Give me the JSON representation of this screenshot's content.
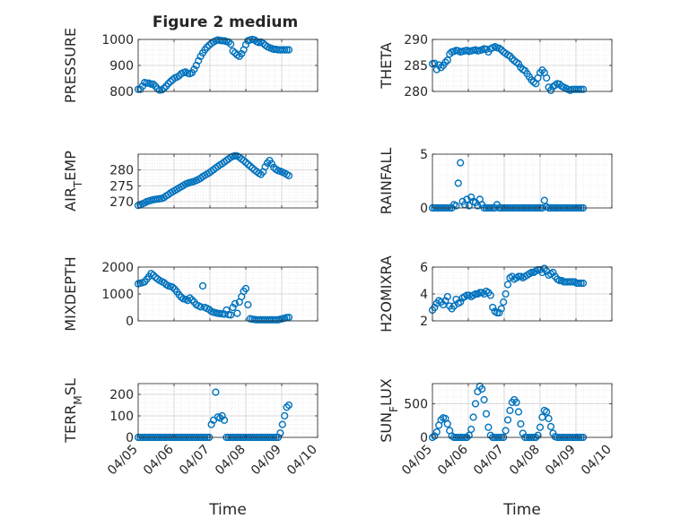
{
  "figure": {
    "title": "Figure 2 medium",
    "marker_color": "#0072BD",
    "grid_color": "#d9d9d9",
    "axis_color": "#262626",
    "x_tick_labels": [
      "04/05",
      "04/06",
      "04/07",
      "04/08",
      "04/09",
      "04/10"
    ],
    "x_label": "Time"
  },
  "chart_data": [
    {
      "type": "scatter",
      "ylabel": "PRESSURE",
      "ylim": [
        800,
        1000
      ],
      "yticks": [
        800,
        900,
        1000
      ],
      "x": [
        0.0,
        0.06,
        0.12,
        0.18,
        0.24,
        0.3,
        0.36,
        0.42,
        0.48,
        0.54,
        0.6,
        0.66,
        0.72,
        0.78,
        0.84,
        0.9,
        0.96,
        1.02,
        1.08,
        1.14,
        1.2,
        1.26,
        1.32,
        1.38,
        1.44,
        1.5,
        1.56,
        1.62,
        1.68,
        1.74,
        1.8,
        1.86,
        1.92,
        1.98,
        2.04,
        2.1,
        2.16,
        2.22,
        2.28,
        2.34,
        2.4,
        2.46,
        2.52,
        2.58,
        2.64,
        2.7,
        2.76,
        2.82,
        2.88,
        2.94,
        3.0,
        3.06,
        3.12,
        3.18,
        3.24,
        3.3,
        3.36,
        3.42,
        3.48,
        3.54,
        3.6,
        3.66,
        3.72,
        3.78,
        3.84,
        3.9,
        3.96,
        4.02,
        4.08,
        4.14,
        4.2
      ],
      "y": [
        808,
        808,
        820,
        834,
        832,
        832,
        828,
        828,
        820,
        810,
        805,
        806,
        812,
        820,
        830,
        838,
        845,
        852,
        855,
        860,
        868,
        872,
        875,
        870,
        868,
        872,
        885,
        900,
        918,
        935,
        948,
        960,
        970,
        978,
        985,
        990,
        995,
        998,
        996,
        995,
        995,
        992,
        990,
        982,
        955,
        948,
        940,
        935,
        945,
        960,
        980,
        995,
        998,
        1000,
        998,
        992,
        988,
        990,
        985,
        978,
        972,
        968,
        965,
        962,
        962,
        960,
        960,
        960,
        960,
        960,
        960
      ]
    },
    {
      "type": "scatter",
      "ylabel": "THETA",
      "ylim": [
        280,
        290
      ],
      "yticks": [
        280,
        285,
        290
      ],
      "x": [
        0.0,
        0.06,
        0.12,
        0.18,
        0.24,
        0.3,
        0.36,
        0.42,
        0.48,
        0.54,
        0.6,
        0.66,
        0.72,
        0.78,
        0.84,
        0.9,
        0.96,
        1.02,
        1.08,
        1.14,
        1.2,
        1.26,
        1.32,
        1.38,
        1.44,
        1.5,
        1.56,
        1.62,
        1.68,
        1.74,
        1.8,
        1.86,
        1.92,
        1.98,
        2.04,
        2.1,
        2.16,
        2.22,
        2.28,
        2.34,
        2.4,
        2.46,
        2.52,
        2.58,
        2.64,
        2.7,
        2.76,
        2.82,
        2.88,
        2.94,
        3.0,
        3.06,
        3.12,
        3.18,
        3.24,
        3.3,
        3.36,
        3.42,
        3.48,
        3.54,
        3.6,
        3.66,
        3.72,
        3.78,
        3.84,
        3.9,
        3.96,
        4.02,
        4.08,
        4.14,
        4.2
      ],
      "y": [
        285.3,
        285.4,
        284.2,
        285.1,
        284.6,
        285.0,
        285.6,
        286.0,
        287.2,
        287.6,
        287.7,
        287.9,
        287.8,
        287.6,
        287.7,
        287.8,
        287.9,
        287.7,
        287.8,
        287.9,
        288.0,
        287.8,
        287.9,
        288.0,
        288.2,
        288.1,
        287.6,
        288.2,
        288.4,
        288.6,
        288.4,
        288.3,
        288.0,
        287.6,
        287.3,
        287.0,
        286.8,
        286.3,
        285.9,
        285.6,
        285.3,
        284.6,
        284.2,
        284.0,
        283.4,
        282.8,
        282.2,
        281.8,
        281.5,
        282.6,
        283.6,
        284.1,
        283.6,
        282.6,
        280.8,
        280.2,
        280.9,
        281.2,
        281.5,
        281.4,
        281.0,
        280.8,
        280.6,
        280.4,
        280.2,
        280.4,
        280.4,
        280.4,
        280.4,
        280.4,
        280.4
      ]
    },
    {
      "type": "scatter",
      "ylabel": "AIR_TEMP",
      "ylim": [
        268,
        285
      ],
      "yticks": [
        270,
        275,
        280
      ],
      "x": [
        0.0,
        0.06,
        0.12,
        0.18,
        0.24,
        0.3,
        0.36,
        0.42,
        0.48,
        0.54,
        0.6,
        0.66,
        0.72,
        0.78,
        0.84,
        0.9,
        0.96,
        1.02,
        1.08,
        1.14,
        1.2,
        1.26,
        1.32,
        1.38,
        1.44,
        1.5,
        1.56,
        1.62,
        1.68,
        1.74,
        1.8,
        1.86,
        1.92,
        1.98,
        2.04,
        2.1,
        2.16,
        2.22,
        2.28,
        2.34,
        2.4,
        2.46,
        2.52,
        2.58,
        2.64,
        2.7,
        2.76,
        2.82,
        2.88,
        2.94,
        3.0,
        3.06,
        3.12,
        3.18,
        3.24,
        3.3,
        3.36,
        3.42,
        3.48,
        3.54,
        3.6,
        3.66,
        3.72,
        3.78,
        3.84,
        3.9,
        3.96,
        4.02,
        4.08,
        4.14,
        4.2
      ],
      "y": [
        268.8,
        269.0,
        269.3,
        269.6,
        270.0,
        270.2,
        270.4,
        270.6,
        270.7,
        270.8,
        270.9,
        271.0,
        271.3,
        271.8,
        272.2,
        272.7,
        273.1,
        273.5,
        273.9,
        274.3,
        274.7,
        275.1,
        275.5,
        275.8,
        276.0,
        276.2,
        276.4,
        276.7,
        277.0,
        277.4,
        277.9,
        278.3,
        278.7,
        279.1,
        279.6,
        280.1,
        280.6,
        281.1,
        281.6,
        282.0,
        282.5,
        283.0,
        283.5,
        284.0,
        284.3,
        284.5,
        284.4,
        284.0,
        283.5,
        283.0,
        282.4,
        281.8,
        281.2,
        280.6,
        280.0,
        279.5,
        279.0,
        278.6,
        279.4,
        281.0,
        282.2,
        283.0,
        282.0,
        280.8,
        280.2,
        279.8,
        279.6,
        279.3,
        279.0,
        278.6,
        278.2
      ]
    },
    {
      "type": "scatter",
      "ylabel": "RAINFALL",
      "ylim": [
        0,
        5
      ],
      "yticks": [
        0,
        5
      ],
      "x": [
        0.0,
        0.06,
        0.12,
        0.18,
        0.24,
        0.3,
        0.36,
        0.42,
        0.48,
        0.54,
        0.6,
        0.66,
        0.72,
        0.78,
        0.84,
        0.9,
        0.96,
        1.02,
        1.08,
        1.14,
        1.2,
        1.26,
        1.32,
        1.38,
        1.44,
        1.5,
        1.56,
        1.62,
        1.68,
        1.74,
        1.8,
        1.86,
        1.92,
        1.98,
        2.04,
        2.1,
        2.16,
        2.22,
        2.28,
        2.34,
        2.4,
        2.46,
        2.52,
        2.58,
        2.64,
        2.7,
        2.76,
        2.82,
        2.88,
        2.94,
        3.0,
        3.06,
        3.12,
        3.18,
        3.24,
        3.3,
        3.36,
        3.42,
        3.48,
        3.54,
        3.6,
        3.66,
        3.72,
        3.78,
        3.84,
        3.9,
        3.96,
        4.02,
        4.08,
        4.14,
        4.2
      ],
      "y": [
        0,
        0,
        0,
        0,
        0,
        0,
        0,
        0,
        0,
        0,
        0.3,
        0.2,
        2.3,
        4.2,
        0.6,
        0.3,
        0.8,
        0.2,
        1.0,
        0.6,
        0.5,
        0.2,
        0.8,
        0.3,
        0,
        0,
        0,
        0,
        0,
        0,
        0.3,
        0,
        0,
        0,
        0,
        0,
        0,
        0,
        0,
        0,
        0,
        0,
        0,
        0,
        0,
        0,
        0,
        0,
        0,
        0,
        0,
        0,
        0.7,
        0.1,
        0,
        0,
        0,
        0,
        0,
        0,
        0,
        0,
        0,
        0,
        0,
        0,
        0,
        0,
        0,
        0,
        0
      ]
    },
    {
      "type": "scatter",
      "ylabel": "MIXDEPTH",
      "ylim": [
        0,
        2000
      ],
      "yticks": [
        0,
        1000,
        2000
      ],
      "x": [
        0.0,
        0.06,
        0.12,
        0.18,
        0.24,
        0.3,
        0.36,
        0.42,
        0.48,
        0.54,
        0.6,
        0.66,
        0.72,
        0.78,
        0.84,
        0.9,
        0.96,
        1.02,
        1.08,
        1.14,
        1.2,
        1.26,
        1.32,
        1.38,
        1.44,
        1.5,
        1.56,
        1.62,
        1.68,
        1.74,
        1.8,
        1.86,
        1.92,
        1.98,
        2.04,
        2.1,
        2.16,
        2.22,
        2.28,
        2.34,
        2.4,
        2.46,
        2.52,
        2.58,
        2.64,
        2.7,
        2.76,
        2.82,
        2.88,
        2.94,
        3.0,
        3.06,
        3.12,
        3.18,
        3.24,
        3.3,
        3.36,
        3.42,
        3.48,
        3.54,
        3.6,
        3.66,
        3.72,
        3.78,
        3.84,
        3.9,
        3.96,
        4.02,
        4.08,
        4.14,
        4.2
      ],
      "y": [
        1380,
        1400,
        1420,
        1450,
        1550,
        1650,
        1760,
        1700,
        1620,
        1560,
        1500,
        1460,
        1420,
        1350,
        1300,
        1280,
        1250,
        1180,
        1080,
        970,
        880,
        820,
        800,
        760,
        850,
        780,
        700,
        600,
        560,
        520,
        1300,
        500,
        460,
        420,
        350,
        320,
        300,
        280,
        270,
        260,
        250,
        400,
        230,
        220,
        500,
        640,
        280,
        700,
        900,
        1100,
        1200,
        600,
        80,
        60,
        50,
        40,
        40,
        40,
        40,
        40,
        40,
        40,
        40,
        40,
        40,
        40,
        60,
        80,
        100,
        120,
        130
      ]
    },
    {
      "type": "scatter",
      "ylabel": "H2OMIXRA",
      "ylim": [
        2,
        6
      ],
      "yticks": [
        2,
        4,
        6
      ],
      "x": [
        0.0,
        0.06,
        0.12,
        0.18,
        0.24,
        0.3,
        0.36,
        0.42,
        0.48,
        0.54,
        0.6,
        0.66,
        0.72,
        0.78,
        0.84,
        0.9,
        0.96,
        1.02,
        1.08,
        1.14,
        1.2,
        1.26,
        1.32,
        1.38,
        1.44,
        1.5,
        1.56,
        1.62,
        1.68,
        1.74,
        1.8,
        1.86,
        1.92,
        1.98,
        2.04,
        2.1,
        2.16,
        2.22,
        2.28,
        2.34,
        2.4,
        2.46,
        2.52,
        2.58,
        2.64,
        2.7,
        2.76,
        2.82,
        2.88,
        2.94,
        3.0,
        3.06,
        3.12,
        3.18,
        3.24,
        3.3,
        3.36,
        3.42,
        3.48,
        3.54,
        3.6,
        3.66,
        3.72,
        3.78,
        3.84,
        3.9,
        3.96,
        4.02,
        4.08,
        4.14,
        4.2
      ],
      "y": [
        2.8,
        3.0,
        3.3,
        3.5,
        3.4,
        3.2,
        3.5,
        3.8,
        3.1,
        2.9,
        3.1,
        3.6,
        3.3,
        3.4,
        3.7,
        3.8,
        3.9,
        3.9,
        3.8,
        3.9,
        4.0,
        4.0,
        4.1,
        4.1,
        4.0,
        4.2,
        4.1,
        3.9,
        3.0,
        2.7,
        2.6,
        2.6,
        2.9,
        3.4,
        4.0,
        4.7,
        5.2,
        5.3,
        5.1,
        5.2,
        5.3,
        5.3,
        5.2,
        5.3,
        5.4,
        5.5,
        5.6,
        5.6,
        5.7,
        5.8,
        5.8,
        5.6,
        5.9,
        5.7,
        5.4,
        5.5,
        5.6,
        5.3,
        5.1,
        5.0,
        5.0,
        4.9,
        4.9,
        4.9,
        4.9,
        4.9,
        4.9,
        4.8,
        4.8,
        4.8,
        4.8
      ]
    },
    {
      "type": "scatter",
      "ylabel": "TERR_MSL",
      "ylim": [
        0,
        250
      ],
      "yticks": [
        0,
        100,
        200
      ],
      "x": [
        0.0,
        0.06,
        0.12,
        0.18,
        0.24,
        0.3,
        0.36,
        0.42,
        0.48,
        0.54,
        0.6,
        0.66,
        0.72,
        0.78,
        0.84,
        0.9,
        0.96,
        1.02,
        1.08,
        1.14,
        1.2,
        1.26,
        1.32,
        1.38,
        1.44,
        1.5,
        1.56,
        1.62,
        1.68,
        1.74,
        1.8,
        1.86,
        1.92,
        1.98,
        2.04,
        2.1,
        2.16,
        2.22,
        2.28,
        2.34,
        2.4,
        2.46,
        2.52,
        2.58,
        2.64,
        2.7,
        2.76,
        2.82,
        2.88,
        2.94,
        3.0,
        3.06,
        3.12,
        3.18,
        3.24,
        3.3,
        3.36,
        3.42,
        3.48,
        3.54,
        3.6,
        3.66,
        3.72,
        3.78,
        3.84,
        3.9,
        3.96,
        4.02,
        4.08,
        4.14,
        4.2
      ],
      "y": [
        0,
        0,
        0,
        0,
        0,
        0,
        0,
        0,
        0,
        0,
        0,
        0,
        0,
        0,
        0,
        0,
        0,
        0,
        0,
        0,
        0,
        0,
        0,
        0,
        0,
        0,
        0,
        0,
        0,
        0,
        0,
        0,
        0,
        0,
        60,
        80,
        210,
        95,
        90,
        100,
        80,
        0,
        0,
        0,
        0,
        0,
        0,
        0,
        0,
        0,
        0,
        0,
        0,
        0,
        0,
        0,
        0,
        0,
        0,
        0,
        0,
        0,
        0,
        0,
        0,
        0,
        20,
        60,
        100,
        140,
        150
      ]
    },
    {
      "type": "scatter",
      "ylabel": "SUN_FLUX",
      "ylim": [
        0,
        800
      ],
      "yticks": [
        0,
        500
      ],
      "x": [
        0.0,
        0.06,
        0.12,
        0.18,
        0.24,
        0.3,
        0.36,
        0.42,
        0.48,
        0.54,
        0.6,
        0.66,
        0.72,
        0.78,
        0.84,
        0.9,
        0.96,
        1.02,
        1.08,
        1.14,
        1.2,
        1.26,
        1.32,
        1.38,
        1.44,
        1.5,
        1.56,
        1.62,
        1.68,
        1.74,
        1.8,
        1.86,
        1.92,
        1.98,
        2.04,
        2.1,
        2.16,
        2.22,
        2.28,
        2.34,
        2.4,
        2.46,
        2.52,
        2.58,
        2.64,
        2.7,
        2.76,
        2.82,
        2.88,
        2.94,
        3.0,
        3.06,
        3.12,
        3.18,
        3.24,
        3.3,
        3.36,
        3.42,
        3.48,
        3.54,
        3.6,
        3.66,
        3.72,
        3.78,
        3.84,
        3.9,
        3.96,
        4.02,
        4.08,
        4.14,
        4.2
      ],
      "y": [
        0,
        20,
        80,
        180,
        260,
        290,
        280,
        200,
        100,
        20,
        0,
        0,
        0,
        0,
        0,
        0,
        0,
        30,
        120,
        300,
        500,
        680,
        760,
        720,
        560,
        350,
        150,
        30,
        0,
        0,
        0,
        0,
        0,
        0,
        100,
        260,
        400,
        520,
        560,
        520,
        380,
        200,
        60,
        0,
        0,
        0,
        0,
        0,
        0,
        30,
        150,
        300,
        400,
        380,
        280,
        160,
        60,
        10,
        0,
        0,
        0,
        0,
        0,
        0,
        0,
        0,
        0,
        0,
        0,
        0,
        0
      ]
    }
  ]
}
